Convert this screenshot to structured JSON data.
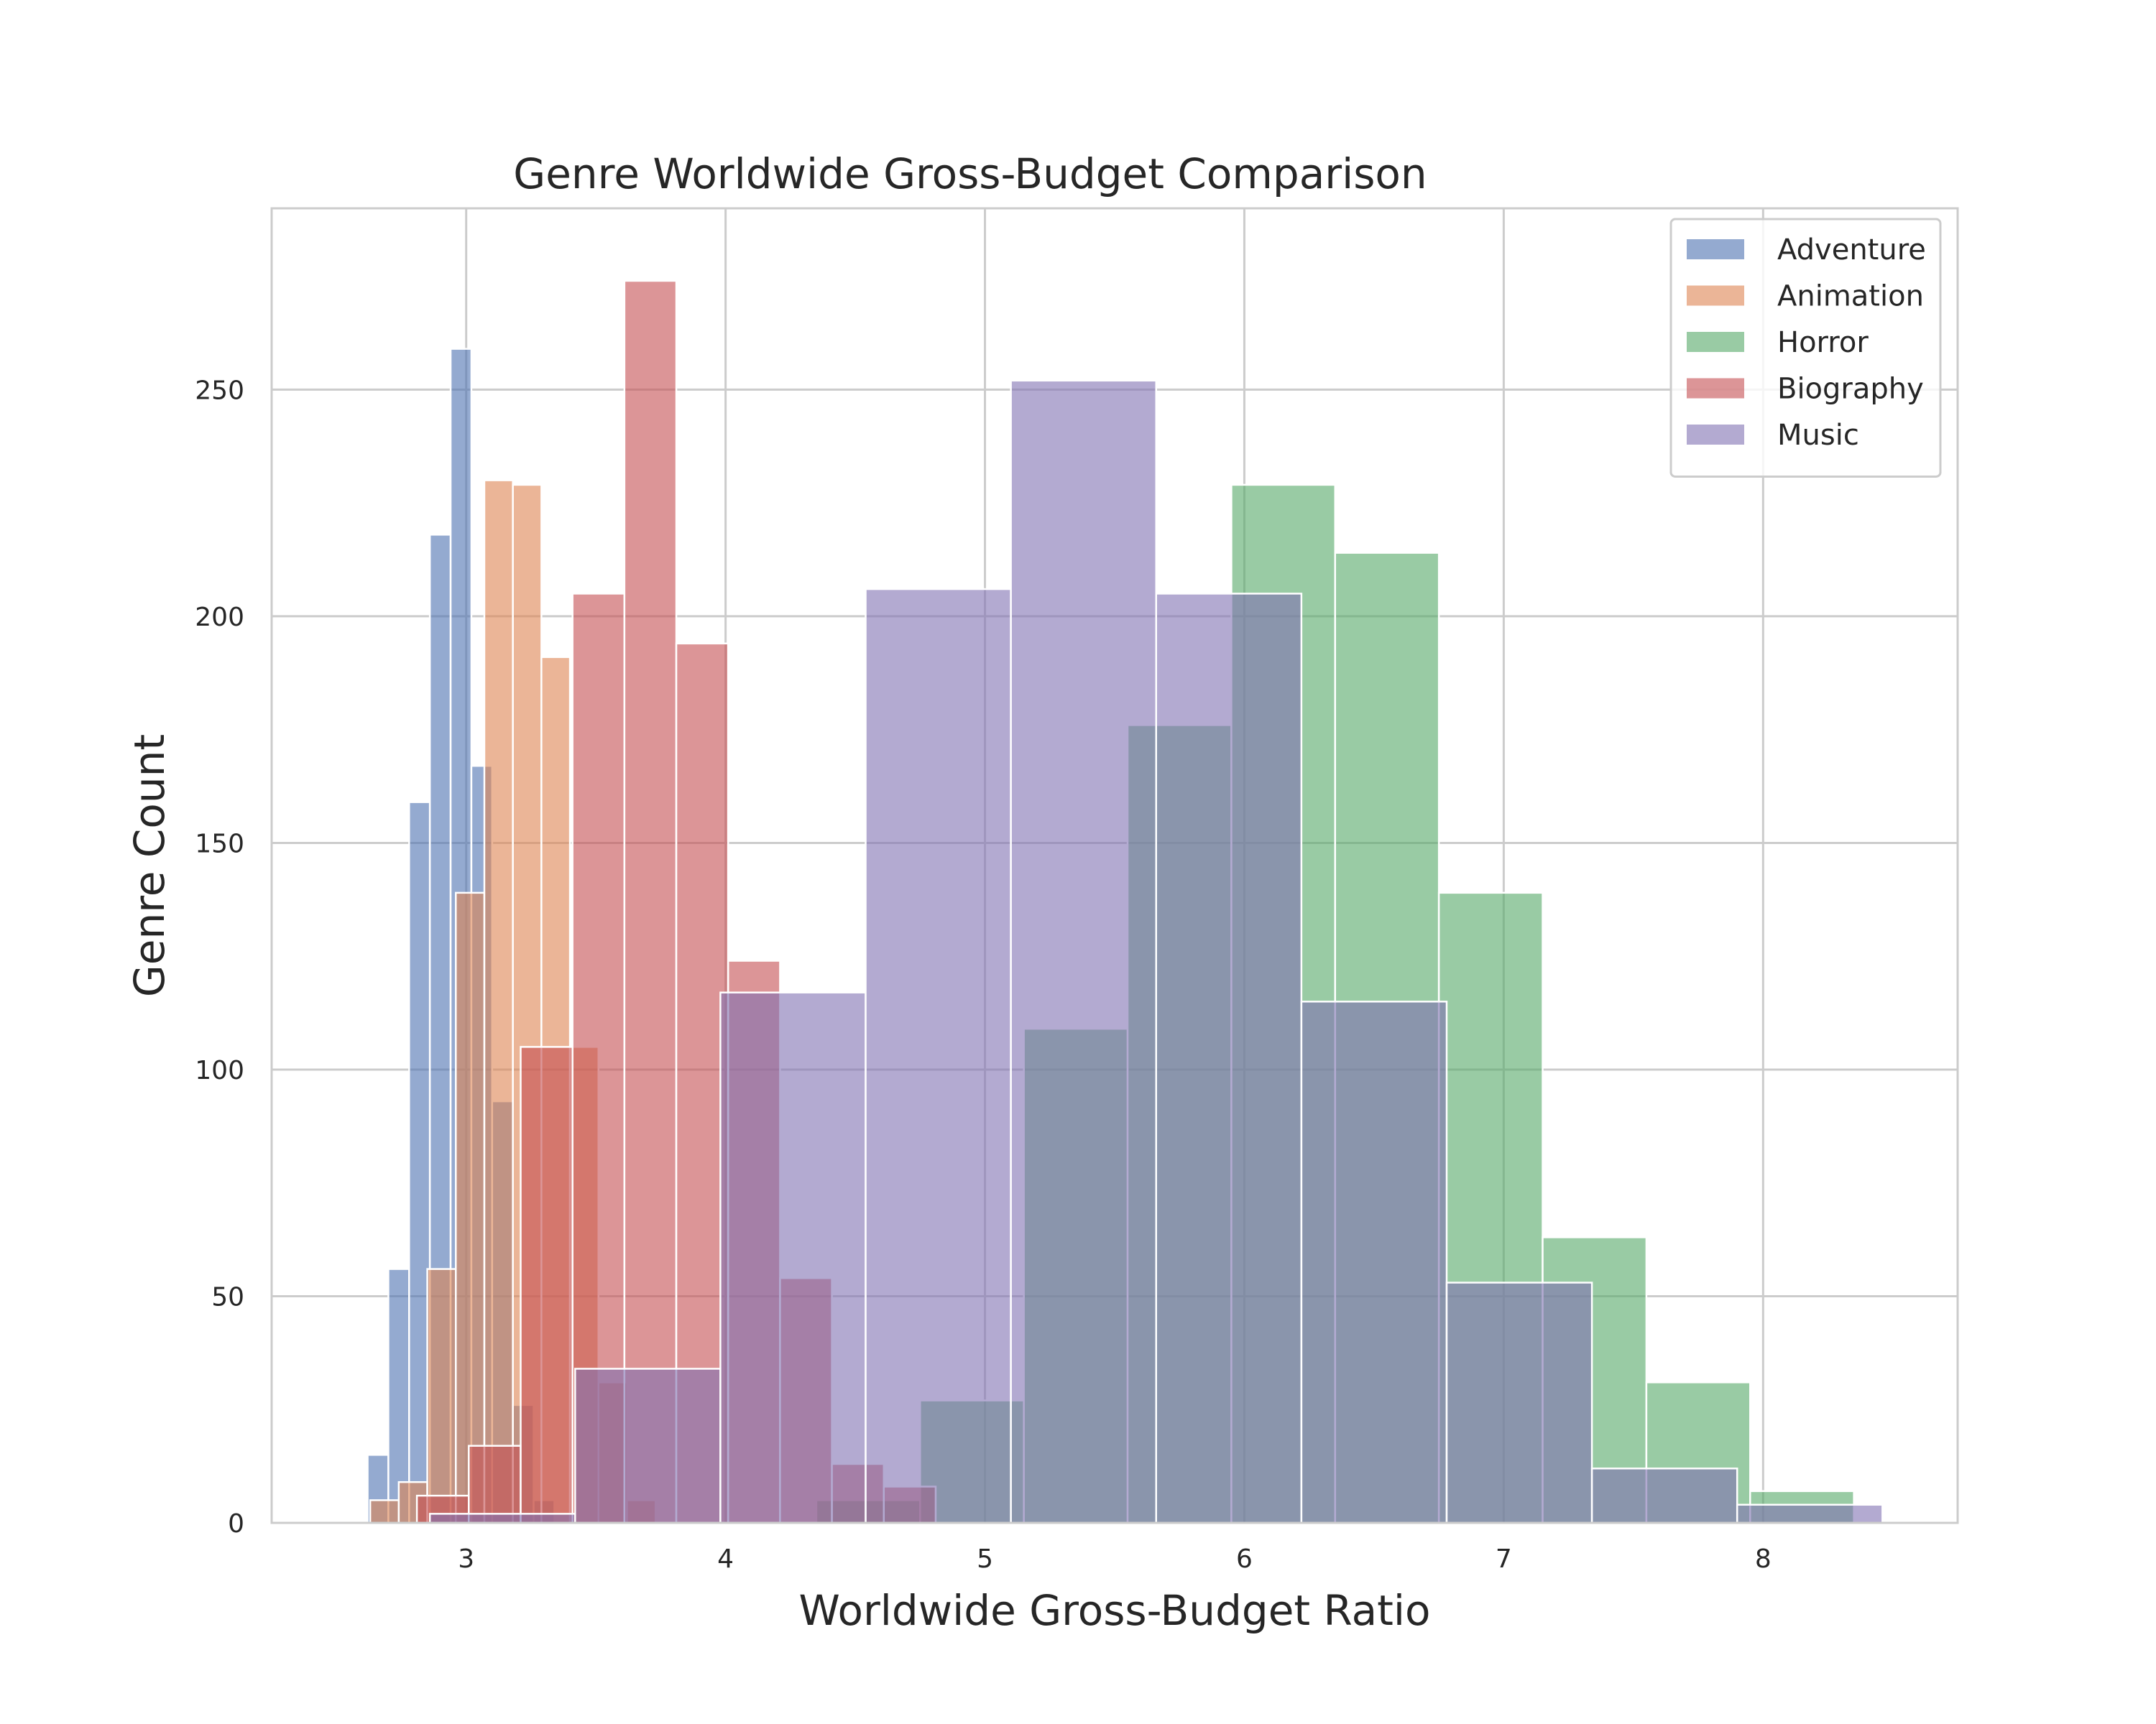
{
  "chart_data": {
    "type": "histogram",
    "title": "Genre Worldwide Gross-Budget Comparison",
    "xlabel": "Worldwide Gross-Budget Ratio",
    "ylabel": "Genre Count",
    "xlim": [
      2.25,
      8.75
    ],
    "ylim": [
      0,
      290
    ],
    "xticks": [
      3,
      4,
      5,
      6,
      7,
      8
    ],
    "yticks": [
      0,
      50,
      100,
      150,
      200,
      250
    ],
    "grid": true,
    "legend_position": "top-right",
    "bar_opacity": 0.6,
    "series": [
      {
        "name": "Adventure",
        "color": "#4c72b0",
        "bins": [
          {
            "x0": 2.62,
            "x1": 2.7,
            "count": 15
          },
          {
            "x0": 2.7,
            "x1": 2.78,
            "count": 56
          },
          {
            "x0": 2.78,
            "x1": 2.86,
            "count": 159
          },
          {
            "x0": 2.86,
            "x1": 2.94,
            "count": 218
          },
          {
            "x0": 2.94,
            "x1": 3.02,
            "count": 259
          },
          {
            "x0": 3.02,
            "x1": 3.1,
            "count": 167
          },
          {
            "x0": 3.1,
            "x1": 3.18,
            "count": 93
          },
          {
            "x0": 3.18,
            "x1": 3.26,
            "count": 26
          },
          {
            "x0": 3.26,
            "x1": 3.34,
            "count": 5
          }
        ]
      },
      {
        "name": "Animation",
        "color": "#dd8452",
        "bins": [
          {
            "x0": 2.63,
            "x1": 2.74,
            "count": 5
          },
          {
            "x0": 2.74,
            "x1": 2.85,
            "count": 9
          },
          {
            "x0": 2.85,
            "x1": 2.96,
            "count": 56
          },
          {
            "x0": 2.96,
            "x1": 3.07,
            "count": 139
          },
          {
            "x0": 3.07,
            "x1": 3.18,
            "count": 230
          },
          {
            "x0": 3.18,
            "x1": 3.29,
            "count": 229
          },
          {
            "x0": 3.29,
            "x1": 3.4,
            "count": 191
          },
          {
            "x0": 3.4,
            "x1": 3.51,
            "count": 105
          },
          {
            "x0": 3.51,
            "x1": 3.62,
            "count": 31
          },
          {
            "x0": 3.62,
            "x1": 3.73,
            "count": 5
          }
        ]
      },
      {
        "name": "Horror",
        "color": "#55a868",
        "bins": [
          {
            "x0": 4.35,
            "x1": 4.75,
            "count": 5
          },
          {
            "x0": 4.75,
            "x1": 5.15,
            "count": 27
          },
          {
            "x0": 5.15,
            "x1": 5.55,
            "count": 109
          },
          {
            "x0": 5.55,
            "x1": 5.95,
            "count": 176
          },
          {
            "x0": 5.95,
            "x1": 6.35,
            "count": 229
          },
          {
            "x0": 6.35,
            "x1": 6.75,
            "count": 214
          },
          {
            "x0": 6.75,
            "x1": 7.15,
            "count": 139
          },
          {
            "x0": 7.15,
            "x1": 7.55,
            "count": 63
          },
          {
            "x0": 7.55,
            "x1": 7.95,
            "count": 31
          },
          {
            "x0": 7.95,
            "x1": 8.35,
            "count": 7
          }
        ]
      },
      {
        "name": "Biography",
        "color": "#c44e52",
        "bins": [
          {
            "x0": 2.81,
            "x1": 3.01,
            "count": 6
          },
          {
            "x0": 3.01,
            "x1": 3.21,
            "count": 17
          },
          {
            "x0": 3.21,
            "x1": 3.41,
            "count": 105
          },
          {
            "x0": 3.41,
            "x1": 3.61,
            "count": 205
          },
          {
            "x0": 3.61,
            "x1": 3.81,
            "count": 274
          },
          {
            "x0": 3.81,
            "x1": 4.01,
            "count": 194
          },
          {
            "x0": 4.01,
            "x1": 4.21,
            "count": 124
          },
          {
            "x0": 4.21,
            "x1": 4.41,
            "count": 54
          },
          {
            "x0": 4.41,
            "x1": 4.61,
            "count": 13
          },
          {
            "x0": 4.61,
            "x1": 4.81,
            "count": 8
          }
        ]
      },
      {
        "name": "Music",
        "color": "#8172b3",
        "bins": [
          {
            "x0": 2.86,
            "x1": 3.42,
            "count": 2
          },
          {
            "x0": 3.42,
            "x1": 3.98,
            "count": 34
          },
          {
            "x0": 3.98,
            "x1": 4.54,
            "count": 117
          },
          {
            "x0": 4.54,
            "x1": 5.1,
            "count": 206
          },
          {
            "x0": 5.1,
            "x1": 5.66,
            "count": 252
          },
          {
            "x0": 5.66,
            "x1": 6.22,
            "count": 205
          },
          {
            "x0": 6.22,
            "x1": 6.78,
            "count": 115
          },
          {
            "x0": 6.78,
            "x1": 7.34,
            "count": 53
          },
          {
            "x0": 7.34,
            "x1": 7.9,
            "count": 12
          },
          {
            "x0": 7.9,
            "x1": 8.46,
            "count": 4
          }
        ]
      }
    ]
  }
}
